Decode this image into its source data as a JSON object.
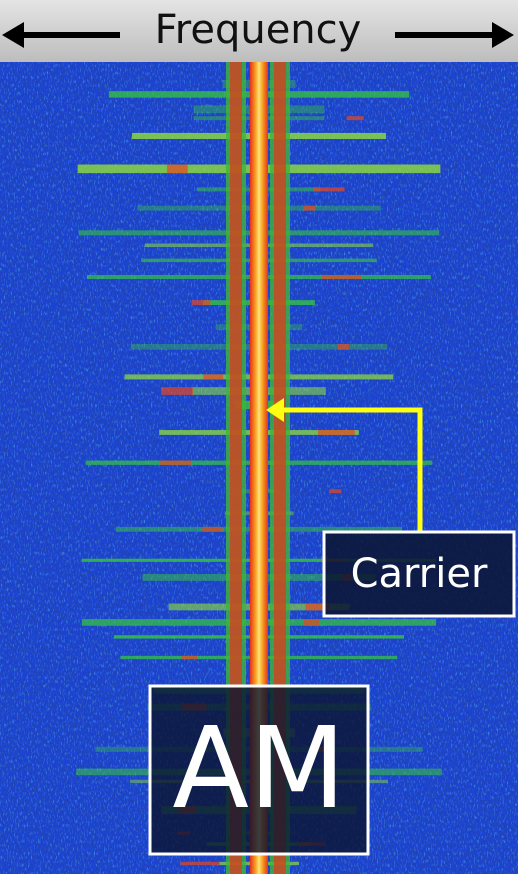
{
  "header": {
    "title": "Frequency"
  },
  "annotations": {
    "carrier_label": "Carrier",
    "modulation_label": "AM"
  }
}
